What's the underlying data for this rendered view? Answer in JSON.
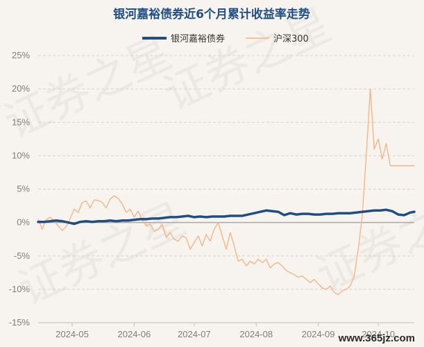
{
  "chart_data": {
    "type": "line",
    "title": "银河嘉裕债券近6个月累计收益率走势",
    "ylim": [
      -15,
      25
    ],
    "y_ticks": [
      "25%",
      "20%",
      "15%",
      "10%",
      "5%",
      "0%",
      "-5%",
      "-10%",
      "-15%"
    ],
    "y_tick_values": [
      25,
      20,
      15,
      10,
      5,
      0,
      -5,
      -10,
      -15
    ],
    "x_ticks": [
      "2024-05",
      "2024-06",
      "2024-07",
      "2024-08",
      "2024-09",
      "2024-10"
    ],
    "x_tick_days": [
      17,
      48,
      78,
      109,
      140,
      170
    ],
    "x_end_day": 188,
    "grid": true,
    "legend_position": "top",
    "series": [
      {
        "name": "银河嘉裕债券",
        "color": "#1f4e85",
        "x": [
          0,
          3,
          6,
          9,
          12,
          15,
          18,
          21,
          24,
          27,
          30,
          33,
          36,
          39,
          42,
          45,
          48,
          51,
          54,
          57,
          60,
          63,
          66,
          69,
          72,
          75,
          78,
          81,
          84,
          87,
          90,
          93,
          96,
          99,
          102,
          105,
          108,
          111,
          114,
          117,
          120,
          123,
          126,
          129,
          132,
          135,
          138,
          141,
          144,
          147,
          150,
          153,
          156,
          159,
          162,
          165,
          168,
          171,
          174,
          177,
          180,
          183,
          186,
          188
        ],
        "values": [
          0.1,
          0.1,
          0.2,
          0.3,
          0.2,
          0.0,
          -0.2,
          0.1,
          0.2,
          0.1,
          0.2,
          0.2,
          0.3,
          0.2,
          0.3,
          0.3,
          0.4,
          0.5,
          0.5,
          0.6,
          0.6,
          0.7,
          0.8,
          0.8,
          0.9,
          1.0,
          0.8,
          0.9,
          0.8,
          0.9,
          0.9,
          0.9,
          1.0,
          1.0,
          1.0,
          1.2,
          1.4,
          1.6,
          1.8,
          1.7,
          1.6,
          1.1,
          1.4,
          1.2,
          1.3,
          1.3,
          1.2,
          1.2,
          1.3,
          1.3,
          1.4,
          1.4,
          1.4,
          1.5,
          1.6,
          1.7,
          1.8,
          1.8,
          1.9,
          1.7,
          1.2,
          1.1,
          1.5,
          1.6
        ]
      },
      {
        "name": "沪深300",
        "color": "#f3b27e",
        "x": [
          0,
          2,
          4,
          6,
          8,
          10,
          12,
          14,
          16,
          18,
          20,
          22,
          24,
          26,
          28,
          30,
          32,
          34,
          36,
          38,
          40,
          42,
          44,
          46,
          48,
          50,
          52,
          54,
          56,
          58,
          60,
          62,
          64,
          66,
          68,
          70,
          72,
          74,
          76,
          78,
          80,
          82,
          84,
          86,
          88,
          90,
          92,
          94,
          96,
          98,
          100,
          102,
          104,
          106,
          108,
          110,
          112,
          114,
          116,
          118,
          120,
          122,
          124,
          126,
          128,
          130,
          132,
          134,
          136,
          138,
          140,
          142,
          144,
          146,
          148,
          150,
          152,
          154,
          156,
          158,
          160,
          162,
          164,
          166,
          168,
          170,
          172,
          174,
          176,
          178,
          180,
          182,
          184,
          186,
          188
        ],
        "values": [
          0.5,
          -1.0,
          0.4,
          0.8,
          0.2,
          -0.5,
          -1.2,
          -0.6,
          0.6,
          2.0,
          1.5,
          3.0,
          3.2,
          2.2,
          3.4,
          3.3,
          3.0,
          2.2,
          3.5,
          4.0,
          3.6,
          2.8,
          1.5,
          2.0,
          0.8,
          1.7,
          0.4,
          -0.5,
          -0.2,
          -1.3,
          -1.0,
          -0.3,
          -2.2,
          -1.5,
          -2.5,
          -2.8,
          -2.0,
          -2.3,
          -4.0,
          -3.0,
          -2.0,
          -3.5,
          -1.8,
          -2.8,
          -1.0,
          0.0,
          -2.0,
          -4.0,
          -1.5,
          -3.5,
          -5.8,
          -5.5,
          -6.5,
          -5.8,
          -6.2,
          -5.5,
          -6.0,
          -5.5,
          -6.8,
          -6.2,
          -6.0,
          -6.5,
          -7.2,
          -7.5,
          -7.8,
          -8.2,
          -8.0,
          -8.5,
          -9.0,
          -8.5,
          -9.2,
          -9.8,
          -10.0,
          -9.5,
          -10.5,
          -10.8,
          -10.2,
          -10.0,
          -9.5,
          -8.0,
          -4.0,
          1.0,
          10.0,
          20.0,
          11.0,
          12.5,
          9.5,
          11.8,
          8.5,
          8.5,
          8.5,
          8.5,
          8.5,
          8.5,
          8.5
        ]
      }
    ]
  },
  "watermark": "证券之星",
  "footer_text": "www.365jz.com"
}
